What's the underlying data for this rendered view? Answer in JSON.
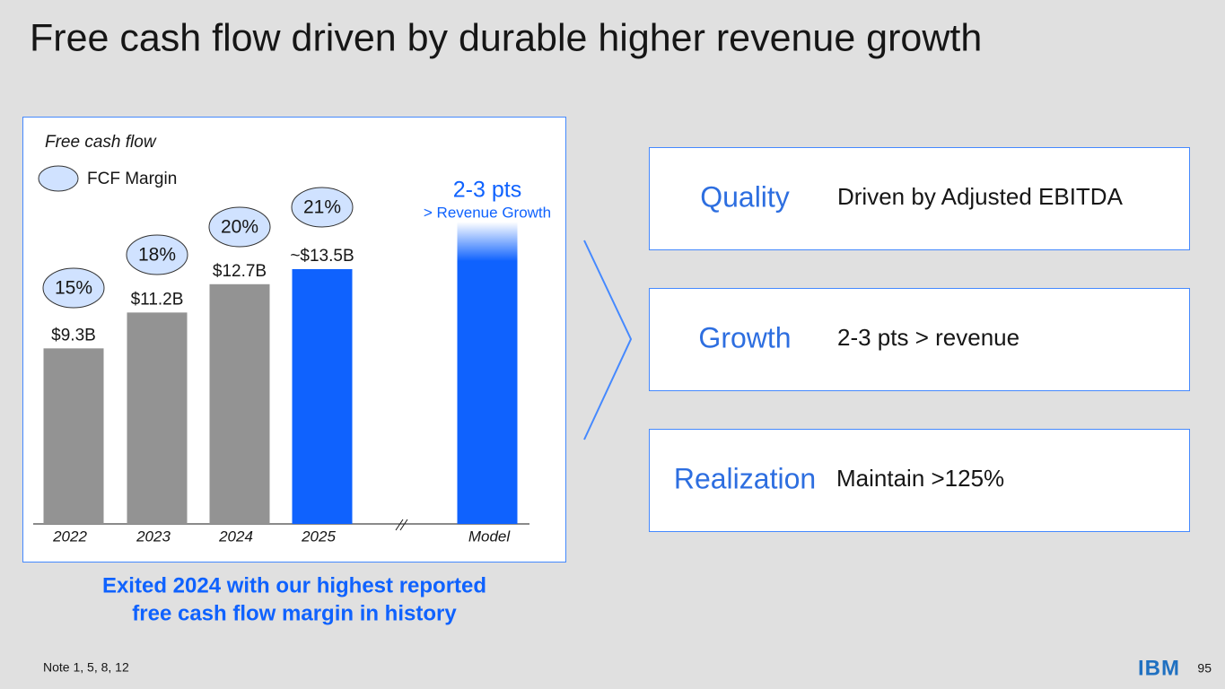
{
  "title": "Free cash flow driven by durable higher revenue growth",
  "chart_data": {
    "type": "bar",
    "title": "Free cash flow",
    "categories": [
      "2022",
      "2023",
      "2024",
      "2025",
      "Model"
    ],
    "values": [
      9.3,
      11.2,
      12.7,
      13.5,
      16
    ],
    "value_labels": [
      "$9.3B",
      "$11.2B",
      "$12.7B",
      "~$13.5B",
      null
    ],
    "colors": [
      "#939393",
      "#939393",
      "#939393",
      "#0f62fe",
      "#0f62fe"
    ],
    "margin": {
      "name": "FCF Margin",
      "color": "#d0e2ff",
      "values": [
        15,
        18,
        20,
        21,
        null
      ],
      "value_labels": [
        "15%",
        "18%",
        "20%",
        "21%",
        null
      ]
    },
    "annotation": {
      "title": "2-3 pts",
      "subtitle": "> Revenue Growth"
    }
  },
  "caption": [
    "Exited 2024 with our highest reported",
    "free cash flow margin in history"
  ],
  "cards": [
    {
      "heading": "Quality",
      "text": "Driven by Adjusted EBITDA"
    },
    {
      "heading": "Growth",
      "text": "2-3 pts > revenue"
    },
    {
      "heading": "Realization",
      "text": "Maintain >125%"
    }
  ],
  "footer": {
    "note": "Note 1, 5, 8, 12",
    "logo": "IBM",
    "page": "95"
  }
}
